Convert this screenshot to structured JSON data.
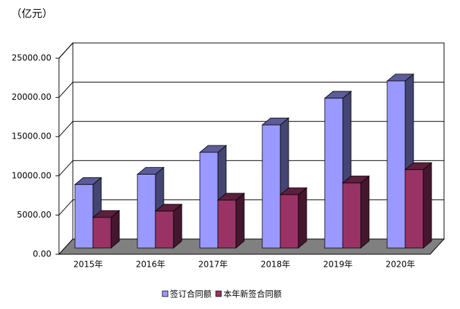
{
  "chart_data": {
    "type": "bar3d",
    "unit_label": "（亿元）",
    "categories": [
      "2015年",
      "2016年",
      "2017年",
      "2018年",
      "2019年",
      "2020年"
    ],
    "series": [
      {
        "name": "签订合同额",
        "color": "#9999ff",
        "values": [
          8100,
          9400,
          12200,
          15700,
          19100,
          21300
        ]
      },
      {
        "name": "本年新签合同额",
        "color": "#993366",
        "values": [
          3900,
          4700,
          6100,
          6800,
          8300,
          10000
        ]
      }
    ],
    "ylim": [
      0,
      25000
    ],
    "yticks": [
      {
        "value": 0,
        "label": "0.00"
      },
      {
        "value": 5000,
        "label": "5000.00"
      },
      {
        "value": 10000,
        "label": "10000.00"
      },
      {
        "value": 15000,
        "label": "15000.00"
      },
      {
        "value": 20000,
        "label": "20000.00"
      },
      {
        "value": 25000,
        "label": "25000.00"
      }
    ],
    "grid": true
  }
}
